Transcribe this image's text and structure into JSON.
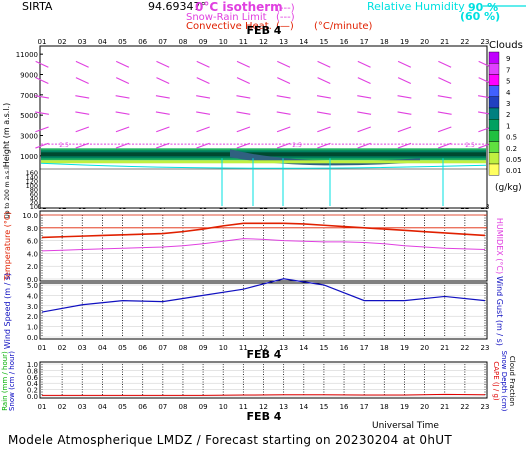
{
  "header": {
    "station": "SIRTA",
    "coords": "94.69347°",
    "legend_isotherm": "0°C isotherm",
    "legend_isotherm_sample": "(---)",
    "legend_snowrain": "Snow-Rain Limit",
    "legend_snowrain_sample": "(---)",
    "legend_convective": "Convective Heat.",
    "legend_convective_sample": "(—)",
    "legend_convective_unit": "(°C/minute)",
    "legend_rh": "Relative Humidity",
    "rh_90": "90 %",
    "rh_60": "(60 %)"
  },
  "date_label": "FEB  4",
  "footer": "Modele Atmospherique LMDZ / Forecast starting on 20230204 at 0hUT",
  "universal_time": "Universal Time",
  "hour_ticks": [
    "01",
    "02",
    "03",
    "04",
    "05",
    "06",
    "07",
    "08",
    "09",
    "10",
    "11",
    "12",
    "13",
    "14",
    "15",
    "16",
    "17",
    "18",
    "19",
    "20",
    "21",
    "22",
    "23"
  ],
  "colors": {
    "wind_barb": "#e040e0",
    "cloud_dark": "#005030",
    "temperature": "#e02000",
    "humidex": "#e040e0",
    "wind": "#1010c0",
    "rh": "#00e0e0",
    "rain": "#00b000",
    "snow": "#0000c0",
    "cape": "#e00000"
  },
  "clouds_colorbar": {
    "title": "Clouds",
    "unit": "(g/kg)",
    "levels": [
      "9",
      "7",
      "5",
      "4",
      "3",
      "2",
      "1",
      "0.5",
      "0.2",
      "0.05",
      "0.01"
    ],
    "colors": [
      "#c000ff",
      "#e040ff",
      "#ff00ff",
      "#4060ff",
      "#2040c0",
      "#008080",
      "#00a060",
      "#20c040",
      "#60e040",
      "#c0f040",
      "#ffff60"
    ]
  },
  "chart_data": [
    {
      "type": "heatmap",
      "name": "cloud-section",
      "ylabel": "Height (m a.s.l.)",
      "ylabel_low": "Up to 200 m a.s.l.",
      "y_ticks_upper": [
        "11000",
        "9000",
        "7000",
        "5000",
        "3000",
        "1000"
      ],
      "y_ticks_lower": [
        "160",
        "140",
        "120",
        "100",
        "80",
        "60",
        "40",
        "20",
        "10"
      ],
      "x": [
        1,
        2,
        3,
        4,
        5,
        6,
        7,
        8,
        9,
        10,
        11,
        12,
        13,
        14,
        15,
        16,
        17,
        18,
        19,
        20,
        21,
        22,
        23
      ],
      "cloud_layer_height_m": 1150,
      "isotherm_0c_m": 2150,
      "isotherm_label": "2.5",
      "wind_barbs_rows_m": [
        10000,
        8400,
        6800,
        5200,
        3600,
        2000
      ]
    },
    {
      "type": "line",
      "name": "temperature-panel",
      "ylabel": "Temperature (°C)",
      "ylabel_right": "HUMIDEX (°C)",
      "y_ticks": [
        "10.0",
        "8.0",
        "6.0",
        "4.0",
        "2.0",
        "0.0"
      ],
      "ylim": [
        0,
        10
      ],
      "x": [
        1,
        2,
        3,
        4,
        5,
        6,
        7,
        8,
        9,
        10,
        11,
        12,
        13,
        14,
        15,
        16,
        17,
        18,
        19,
        20,
        21,
        22,
        23
      ],
      "series": [
        {
          "name": "Temperature",
          "values": [
            6.5,
            6.6,
            6.7,
            6.8,
            6.9,
            7.0,
            7.1,
            7.4,
            7.8,
            8.3,
            8.7,
            8.7,
            8.7,
            8.6,
            8.4,
            8.2,
            8.0,
            7.8,
            7.6,
            7.4,
            7.2,
            7.0,
            6.8
          ]
        },
        {
          "name": "HUMIDEX",
          "values": [
            4.4,
            4.5,
            4.6,
            4.7,
            4.8,
            4.9,
            5.0,
            5.2,
            5.5,
            5.9,
            6.3,
            6.2,
            6.0,
            5.9,
            5.8,
            5.8,
            5.7,
            5.5,
            5.2,
            5.0,
            4.8,
            4.7,
            4.6
          ]
        }
      ]
    },
    {
      "type": "line",
      "name": "wind-panel",
      "ylabel": "Wind Speed (m / s)",
      "ylabel_right": "Wind Gust (m / s)",
      "y_ticks": [
        "5.0",
        "4.0",
        "3.0",
        "2.0",
        "1.0",
        "0.0"
      ],
      "ylim": [
        0,
        5
      ],
      "x": [
        1,
        3,
        5,
        7,
        9,
        11,
        13,
        15,
        17,
        19,
        21,
        23
      ],
      "series": [
        {
          "name": "Wind Speed",
          "values": [
            2.4,
            3.1,
            3.5,
            3.4,
            4.0,
            4.6,
            5.6,
            5.0,
            3.5,
            3.5,
            3.9,
            3.5
          ]
        }
      ]
    },
    {
      "type": "line",
      "name": "precip-panel",
      "ylabel": "Rain (mm / hour)",
      "ylabel_2": "Snow (cm / hour)",
      "ylabel_right": "CAPE (J / g)",
      "ylabel_right_2": "Snow Depth (cm)",
      "ylabel_right_3": "Cloud Fraction",
      "y_ticks": [
        "1.0",
        "0.8",
        "0.6",
        "0.4",
        "0.2",
        "0.0"
      ],
      "ylim": [
        0,
        1
      ],
      "x": [
        1,
        3,
        5,
        7,
        9,
        11,
        13,
        15,
        17,
        19,
        21,
        23
      ],
      "series": [
        {
          "name": "Rain",
          "values": [
            0.02,
            0.02,
            0.02,
            0.02,
            0.02,
            0.03,
            0.04,
            0.04,
            0.03,
            0.03,
            0.05,
            0.04
          ]
        }
      ]
    }
  ]
}
